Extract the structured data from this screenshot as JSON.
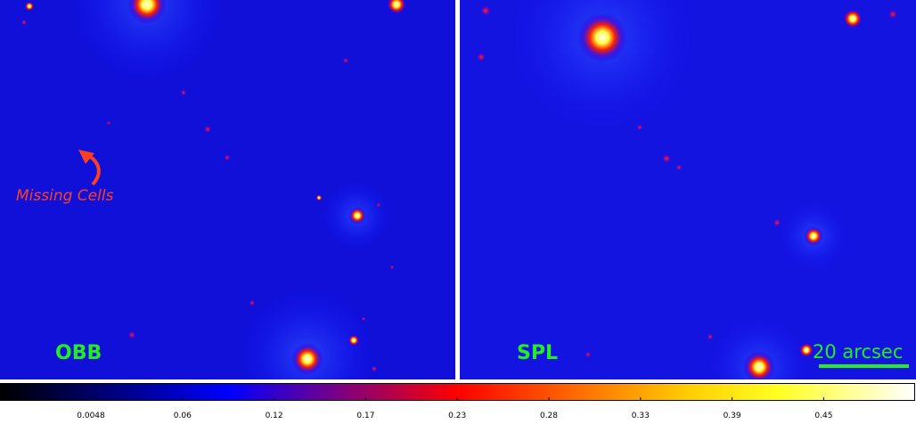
{
  "panels": [
    {
      "label": "OBB"
    },
    {
      "label": "SPL"
    }
  ],
  "annotation": "Missing Cells",
  "scale_bar": "20 arcsec",
  "colorbar": {
    "ticks": [
      "0.0048",
      "0.06",
      "0.12",
      "0.17",
      "0.23",
      "0.28",
      "0.33",
      "0.39",
      "0.45"
    ]
  }
}
